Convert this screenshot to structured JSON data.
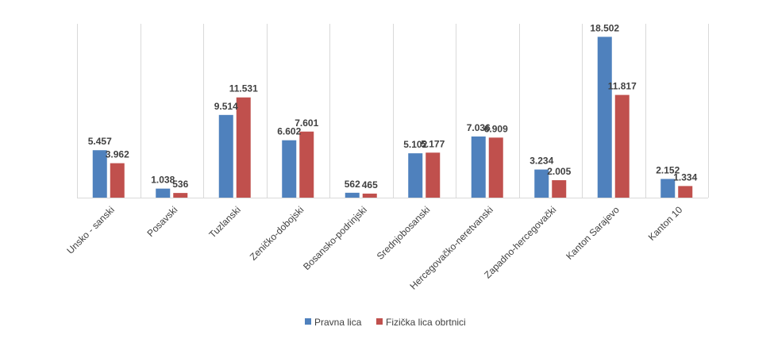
{
  "chart_data": {
    "type": "bar",
    "title": "",
    "xlabel": "",
    "ylabel": "",
    "ylim": [
      0,
      20000
    ],
    "grid": "vertical-category-separators",
    "legend_position": "bottom-center",
    "categories": [
      "Unsko - sanski",
      "Posavski",
      "Tuzlanski",
      "Zeničko-dobojski",
      "Bosansko-podrinjski",
      "Srednjobosanski",
      "Hercegovačko-neretvanski",
      "Zapadno-hercegovački",
      "Kanton Sarajevo",
      "Kanton 10"
    ],
    "series": [
      {
        "name": "Pravna lica",
        "color": "#4f81bd",
        "values": [
          5457,
          1038,
          9514,
          6602,
          562,
          5102,
          7036,
          3234,
          18502,
          2152
        ],
        "labels": [
          "5.457",
          "1.038",
          "9.514",
          "6.602",
          "562",
          "5.102",
          "7.036",
          "3.234",
          "18.502",
          "2.152"
        ]
      },
      {
        "name": "Fizička lica obrtnici",
        "color": "#c0504d",
        "values": [
          3962,
          536,
          11531,
          7601,
          465,
          5177,
          6909,
          2005,
          11817,
          1334
        ],
        "labels": [
          "3.962",
          "536",
          "11.531",
          "7.601",
          "465",
          "5.177",
          "6.909",
          "2.005",
          "11.817",
          "1.334"
        ]
      }
    ]
  }
}
